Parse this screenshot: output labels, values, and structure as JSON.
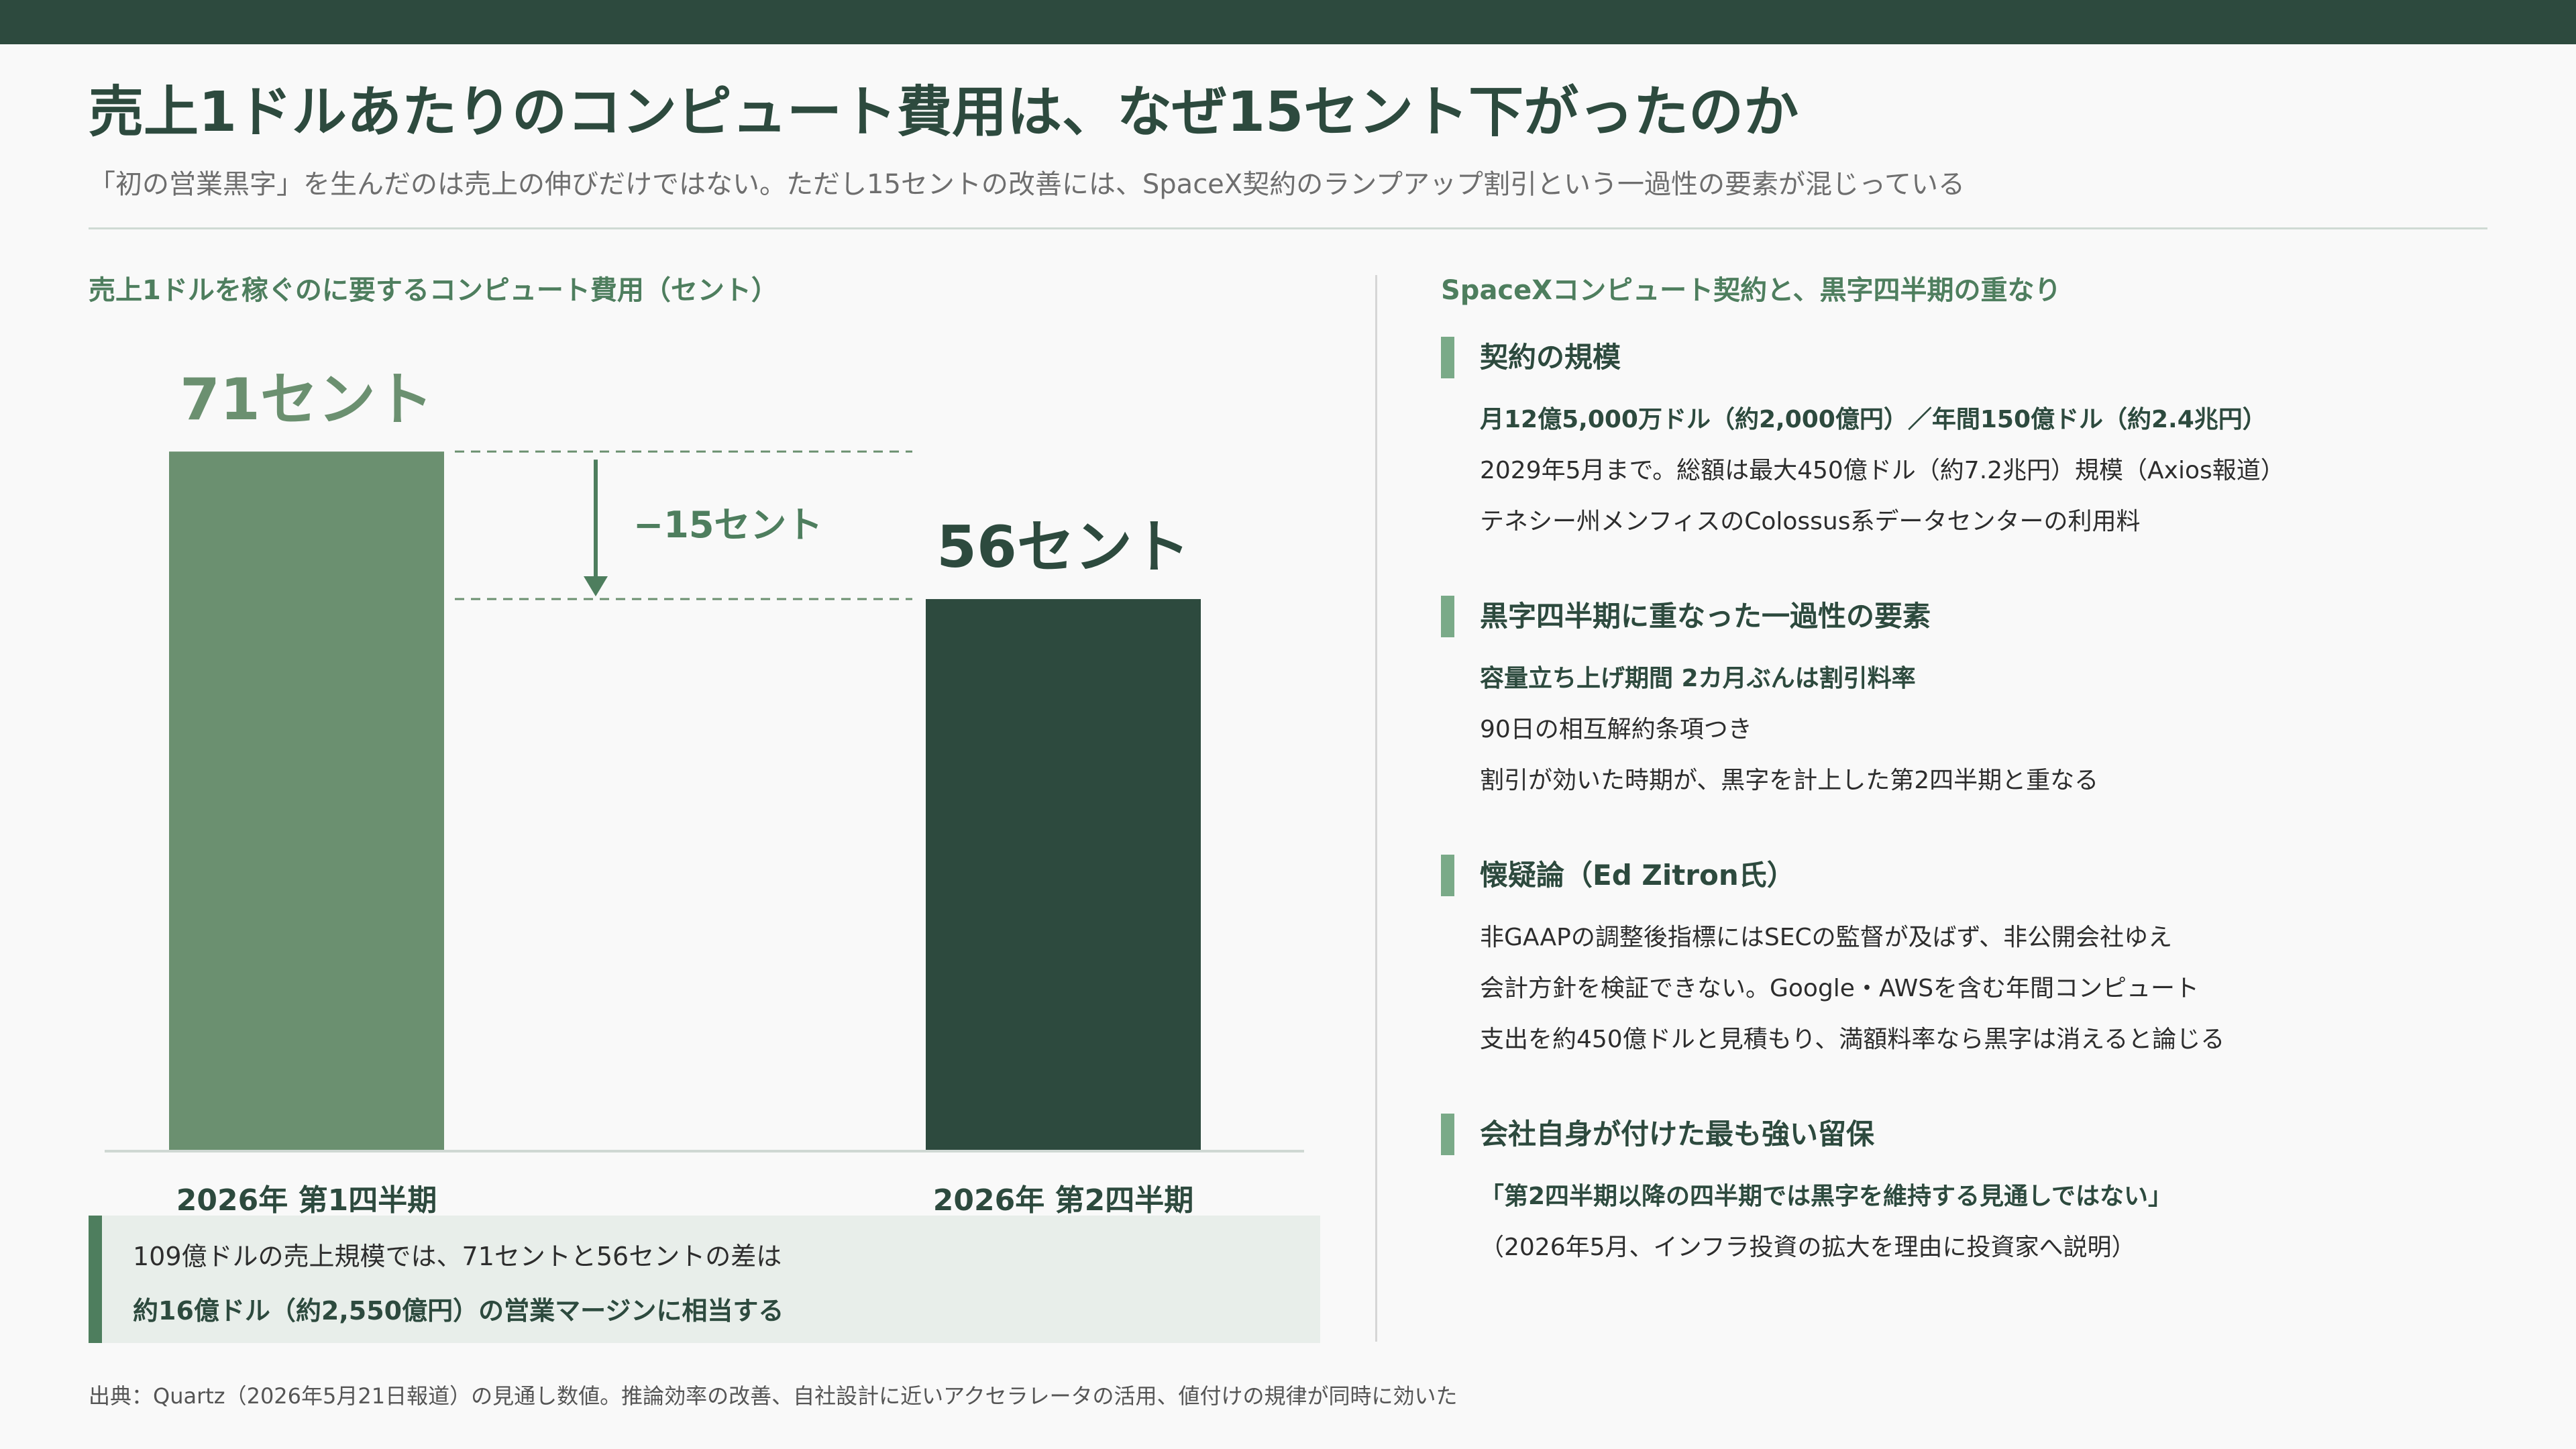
{
  "title": "売上1ドルあたりのコンピュート費用は、なぜ15セント下がったのか",
  "subtitle": "「初の営業黒字」を生んだのは売上の伸びだけではない。ただし15セントの改善には、SpaceX契約のランプアップ割引という一過性の要素が混じっている",
  "chart_heading": "売上1ドルを稼ぐのに要するコンピュート費用（セント）",
  "chart_data": {
    "type": "bar",
    "categories": [
      "2026年 第1四半期",
      "2026年 第2四半期"
    ],
    "values": [
      71,
      56
    ],
    "value_labels": [
      "71セント",
      "56セント"
    ],
    "delta_label": "−15セント",
    "ylim": [
      0,
      100
    ],
    "colors": [
      "#6b9070",
      "#2d4a3e"
    ]
  },
  "note": {
    "line1": "109億ドルの売上規模では、71セントと56セントの差は",
    "line2": "約16億ドル（約2,550億円）の営業マージンに相当する"
  },
  "right_heading": "SpaceXコンピュート契約と、黒字四半期の重なり",
  "blocks": [
    {
      "title": "契約の規模",
      "lines": [
        {
          "text": "月12億5,000万ドル（約2,000億円）／年間150億ドル（約2.4兆円）",
          "bold": true
        },
        {
          "text": "2029年5月まで。総額は最大450億ドル（約7.2兆円）規模（Axios報道）",
          "bold": false
        },
        {
          "text": "テネシー州メンフィスのColossus系データセンターの利用料",
          "bold": false
        }
      ]
    },
    {
      "title": "黒字四半期に重なった一過性の要素",
      "lines": [
        {
          "text": "容量立ち上げ期間 2カ月ぶんは割引料率",
          "bold": true
        },
        {
          "text": "90日の相互解約条項つき",
          "bold": false
        },
        {
          "text": "割引が効いた時期が、黒字を計上した第2四半期と重なる",
          "bold": false
        }
      ]
    },
    {
      "title": "懐疑論（Ed Zitron氏）",
      "lines": [
        {
          "text": "非GAAPの調整後指標にはSECの監督が及ばず、非公開会社ゆえ",
          "bold": false
        },
        {
          "text": "会計方針を検証できない。Google・AWSを含む年間コンピュート",
          "bold": false
        },
        {
          "text": "支出を約450億ドルと見積もり、満額料率なら黒字は消えると論じる",
          "bold": false
        }
      ]
    },
    {
      "title": "会社自身が付けた最も強い留保",
      "lines": [
        {
          "text": "「第2四半期以降の四半期では黒字を維持する見通しではない」",
          "bold": true
        },
        {
          "text": "（2026年5月、インフラ投資の拡大を理由に投資家へ説明）",
          "bold": false
        }
      ]
    }
  ],
  "footer": "出典：Quartz（2026年5月21日報道）の見通し数値。推論効率の改善、自社設計に近いアクセラレータの活用、値付けの規律が同時に効いた"
}
